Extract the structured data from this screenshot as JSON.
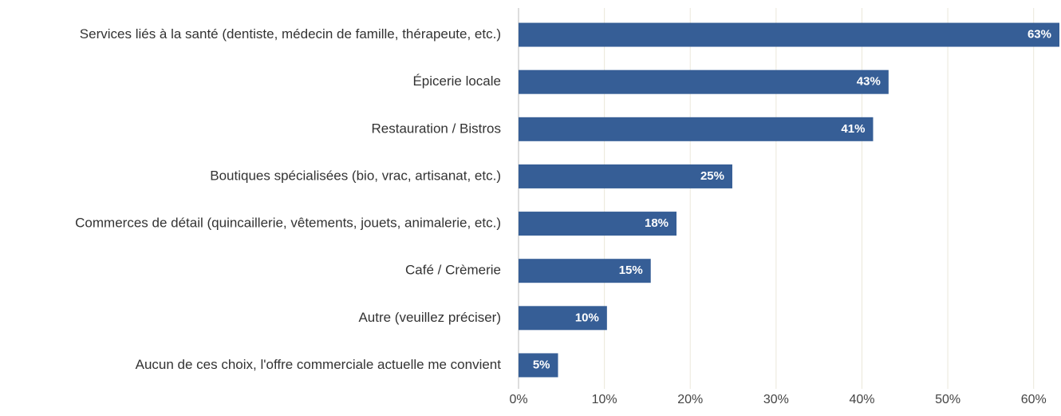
{
  "chart_data": {
    "type": "barh",
    "categories": [
      "Services liés à la santé (dentiste, médecin de famille, thérapeute, etc.)",
      "Épicerie locale",
      "Restauration / Bistros",
      "Boutiques spécialisées (bio, vrac, artisanat, etc.)",
      "Commerces de détail (quincaillerie, vêtements, jouets, animalerie, etc.)",
      "Café / Crèmerie",
      "Autre (veuillez préciser)",
      "Aucun de ces choix, l'offre commerciale actuelle me convient"
    ],
    "values": [
      63,
      43.1,
      41.3,
      24.9,
      18.4,
      15.4,
      10.3,
      4.6
    ],
    "value_labels": [
      "63%",
      "43%",
      "41%",
      "25%",
      "18%",
      "15%",
      "10%",
      "5%"
    ],
    "color": "#365e96",
    "xlim": [
      0,
      63
    ],
    "xticks": [
      {
        "value": 0,
        "label": "0%"
      },
      {
        "value": 10,
        "label": "10%"
      },
      {
        "value": 20,
        "label": "20%"
      },
      {
        "value": 30,
        "label": "30%"
      },
      {
        "value": 40,
        "label": "40%"
      },
      {
        "value": 50,
        "label": "50%"
      },
      {
        "value": 60,
        "label": "60%"
      }
    ],
    "grid": true
  }
}
